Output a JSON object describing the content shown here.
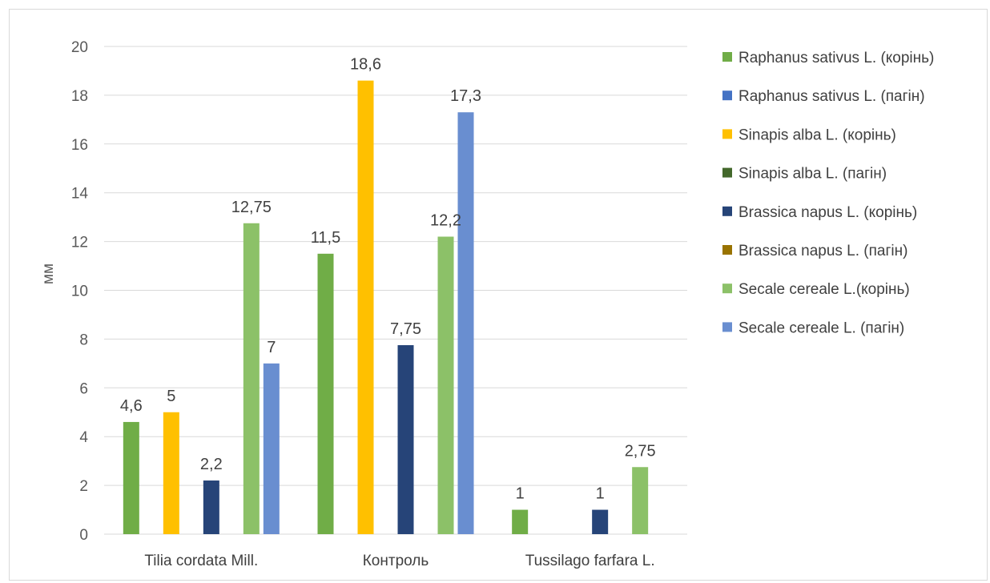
{
  "chart_data": {
    "type": "bar",
    "ylabel": "мм",
    "xlabel": "",
    "ylim": [
      0,
      20
    ],
    "ytick_step": 2,
    "grid": true,
    "legend_position": "right",
    "categories": [
      "Tilia cordata Mill.",
      "Контроль",
      "Tussilago farfara L."
    ],
    "series": [
      {
        "name": "Raphanus sativus L. (корінь)",
        "color": "#70ad47",
        "values": [
          4.6,
          11.5,
          1
        ],
        "labels": [
          "4,6",
          "11,5",
          "1"
        ]
      },
      {
        "name": "Raphanus sativus L. (пагін)",
        "color": "#4472c4",
        "values": [
          null,
          null,
          null
        ],
        "labels": [
          null,
          null,
          null
        ]
      },
      {
        "name": "Sinapis alba L. (корінь)",
        "color": "#ffc000",
        "values": [
          5,
          18.6,
          null
        ],
        "labels": [
          "5",
          "18,6",
          null
        ]
      },
      {
        "name": "Sinapis alba L. (пагін)",
        "color": "#43682b",
        "values": [
          null,
          null,
          null
        ],
        "labels": [
          null,
          null,
          null
        ]
      },
      {
        "name": "Brassica napus L. (корінь)",
        "color": "#264478",
        "values": [
          2.2,
          7.75,
          1
        ],
        "labels": [
          "2,2",
          "7,75",
          "1"
        ]
      },
      {
        "name": "Brassica napus L. (пагін)",
        "color": "#997300",
        "values": [
          null,
          null,
          null
        ],
        "labels": [
          null,
          null,
          null
        ]
      },
      {
        "name": "Secale cereale L.(корінь)",
        "color": "#8cc168",
        "values": [
          12.75,
          12.2,
          2.75
        ],
        "labels": [
          "12,75",
          "12,2",
          "2,75"
        ]
      },
      {
        "name": "Secale cereale L. (пагін)",
        "color": "#698ed0",
        "values": [
          7,
          17.3,
          null
        ],
        "labels": [
          "7",
          "17,3",
          null
        ]
      }
    ]
  }
}
